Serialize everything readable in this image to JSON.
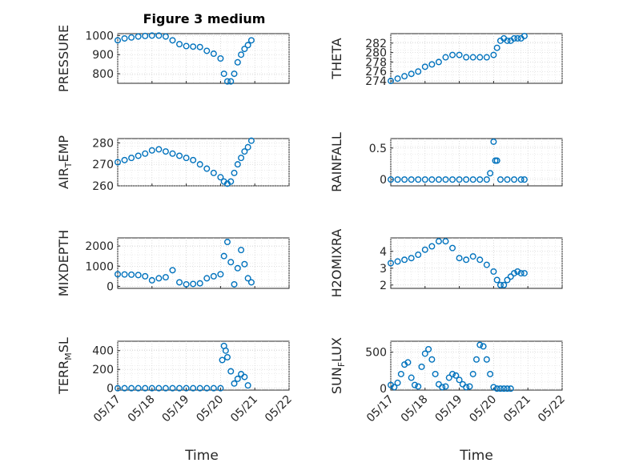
{
  "figure": {
    "title": "Figure 3 medium",
    "xlabel": "Time",
    "marker_color": "#0072BD"
  },
  "chart_data": [
    {
      "type": "scatter",
      "ylabel": "PRESSURE",
      "xlabel": "",
      "xlim": [
        0,
        5
      ],
      "ylim": [
        750,
        1010
      ],
      "yticks": [
        800,
        900,
        1000
      ],
      "xticks": [],
      "x": [
        0,
        0.2,
        0.4,
        0.6,
        0.8,
        1.0,
        1.2,
        1.4,
        1.6,
        1.8,
        2.0,
        2.2,
        2.4,
        2.6,
        2.8,
        3.0,
        3.1,
        3.2,
        3.3,
        3.4,
        3.5,
        3.6,
        3.7,
        3.8,
        3.9
      ],
      "y": [
        975,
        985,
        990,
        995,
        998,
        1000,
        1000,
        995,
        975,
        955,
        945,
        942,
        940,
        920,
        905,
        880,
        800,
        760,
        760,
        800,
        860,
        900,
        930,
        950,
        975
      ]
    },
    {
      "type": "scatter",
      "ylabel": "THETA",
      "xlabel": "",
      "xlim": [
        0,
        5
      ],
      "ylim": [
        273.5,
        284
      ],
      "yticks": [
        274,
        276,
        278,
        280,
        282
      ],
      "xticks": [],
      "x": [
        0,
        0.2,
        0.4,
        0.6,
        0.8,
        1.0,
        1.2,
        1.4,
        1.6,
        1.8,
        2.0,
        2.2,
        2.4,
        2.6,
        2.8,
        3.0,
        3.1,
        3.2,
        3.3,
        3.4,
        3.5,
        3.6,
        3.7,
        3.8,
        3.9
      ],
      "y": [
        274,
        274.5,
        275,
        275.5,
        276,
        277,
        277.5,
        278,
        279,
        279.5,
        279.5,
        279,
        279,
        279,
        279,
        279.5,
        281,
        282.5,
        283,
        282.5,
        282.5,
        283,
        283,
        283,
        283.5
      ]
    },
    {
      "type": "scatter",
      "ylabel": "AIR_TEMP",
      "xlabel": "",
      "xlim": [
        0,
        5
      ],
      "ylim": [
        260,
        282
      ],
      "yticks": [
        260,
        270,
        280
      ],
      "xticks": [],
      "x": [
        0,
        0.2,
        0.4,
        0.6,
        0.8,
        1.0,
        1.2,
        1.4,
        1.6,
        1.8,
        2.0,
        2.2,
        2.4,
        2.6,
        2.8,
        3.0,
        3.1,
        3.2,
        3.3,
        3.4,
        3.5,
        3.6,
        3.7,
        3.8,
        3.9
      ],
      "y": [
        271,
        272,
        273,
        274,
        275,
        276.5,
        277,
        276,
        275,
        274,
        273,
        272,
        270,
        268,
        266,
        264,
        262,
        261,
        262,
        266,
        270,
        273,
        276,
        278,
        281
      ]
    },
    {
      "type": "scatter",
      "ylabel": "RAINFALL",
      "xlabel": "",
      "xlim": [
        0,
        5
      ],
      "ylim": [
        -0.1,
        0.65
      ],
      "yticks": [
        0,
        0.5
      ],
      "xticks": [],
      "x": [
        0,
        0.2,
        0.4,
        0.6,
        0.8,
        1.0,
        1.2,
        1.4,
        1.6,
        1.8,
        2.0,
        2.2,
        2.4,
        2.6,
        2.8,
        2.9,
        3.0,
        3.05,
        3.1,
        3.2,
        3.4,
        3.6,
        3.8,
        3.9
      ],
      "y": [
        0,
        0,
        0,
        0,
        0,
        0,
        0,
        0,
        0,
        0,
        0,
        0,
        0,
        0,
        0,
        0.1,
        0.6,
        0.3,
        0.3,
        0,
        0,
        0,
        0,
        0
      ]
    },
    {
      "type": "scatter",
      "ylabel": "MIXDEPTH",
      "xlabel": "",
      "xlim": [
        0,
        5
      ],
      "ylim": [
        -100,
        2400
      ],
      "yticks": [
        0,
        1000,
        2000
      ],
      "xticks": [],
      "x": [
        0,
        0.2,
        0.4,
        0.6,
        0.8,
        1.0,
        1.2,
        1.4,
        1.6,
        1.8,
        2.0,
        2.2,
        2.4,
        2.6,
        2.8,
        3.0,
        3.1,
        3.2,
        3.3,
        3.4,
        3.5,
        3.6,
        3.7,
        3.8,
        3.9
      ],
      "y": [
        600,
        590,
        580,
        560,
        500,
        300,
        400,
        450,
        800,
        200,
        100,
        120,
        150,
        400,
        500,
        600,
        1500,
        2200,
        1200,
        100,
        900,
        1800,
        1100,
        400,
        200
      ]
    },
    {
      "type": "scatter",
      "ylabel": "H2OMIXRA",
      "xlabel": "",
      "xlim": [
        0,
        5
      ],
      "ylim": [
        1.8,
        4.8
      ],
      "yticks": [
        2,
        3,
        4
      ],
      "xticks": [],
      "x": [
        0,
        0.2,
        0.4,
        0.6,
        0.8,
        1.0,
        1.2,
        1.4,
        1.6,
        1.8,
        2.0,
        2.2,
        2.4,
        2.6,
        2.8,
        3.0,
        3.1,
        3.2,
        3.3,
        3.4,
        3.5,
        3.6,
        3.7,
        3.8,
        3.9
      ],
      "y": [
        3.3,
        3.4,
        3.5,
        3.6,
        3.8,
        4.1,
        4.3,
        4.6,
        4.6,
        4.2,
        3.6,
        3.5,
        3.7,
        3.5,
        3.2,
        2.8,
        2.3,
        2.0,
        2.0,
        2.3,
        2.5,
        2.7,
        2.8,
        2.7,
        2.7
      ]
    },
    {
      "type": "scatter",
      "ylabel": "TERR_MSL",
      "xlabel": "Time",
      "xlim": [
        0,
        5
      ],
      "ylim": [
        -20,
        500
      ],
      "yticks": [
        0,
        200,
        400
      ],
      "xticks": [
        "05/17",
        "05/18",
        "05/19",
        "05/20",
        "05/21",
        "05/22"
      ],
      "x": [
        0,
        0.2,
        0.4,
        0.6,
        0.8,
        1.0,
        1.2,
        1.4,
        1.6,
        1.8,
        2.0,
        2.2,
        2.4,
        2.6,
        2.8,
        3.0,
        3.05,
        3.1,
        3.15,
        3.2,
        3.3,
        3.4,
        3.5,
        3.6,
        3.7,
        3.8
      ],
      "y": [
        0,
        0,
        0,
        0,
        0,
        0,
        0,
        0,
        0,
        0,
        0,
        0,
        0,
        0,
        0,
        0,
        300,
        450,
        400,
        330,
        180,
        50,
        100,
        150,
        120,
        30
      ]
    },
    {
      "type": "scatter",
      "ylabel": "SUN_FLUX",
      "xlabel": "Time",
      "xlim": [
        0,
        5
      ],
      "ylim": [
        -20,
        650
      ],
      "yticks": [
        0,
        500
      ],
      "xticks": [
        "05/17",
        "05/18",
        "05/19",
        "05/20",
        "05/21",
        "05/22"
      ],
      "x": [
        0,
        0.1,
        0.2,
        0.3,
        0.4,
        0.5,
        0.6,
        0.7,
        0.8,
        0.9,
        1.0,
        1.1,
        1.2,
        1.3,
        1.4,
        1.5,
        1.6,
        1.7,
        1.8,
        1.9,
        2.0,
        2.1,
        2.2,
        2.3,
        2.4,
        2.5,
        2.6,
        2.7,
        2.8,
        2.9,
        3.0,
        3.1,
        3.2,
        3.3,
        3.4,
        3.5
      ],
      "y": [
        50,
        20,
        80,
        200,
        330,
        360,
        150,
        50,
        30,
        300,
        480,
        540,
        400,
        200,
        60,
        20,
        30,
        150,
        200,
        180,
        120,
        60,
        20,
        30,
        200,
        400,
        600,
        580,
        400,
        200,
        20,
        0,
        0,
        0,
        0,
        0
      ]
    }
  ]
}
